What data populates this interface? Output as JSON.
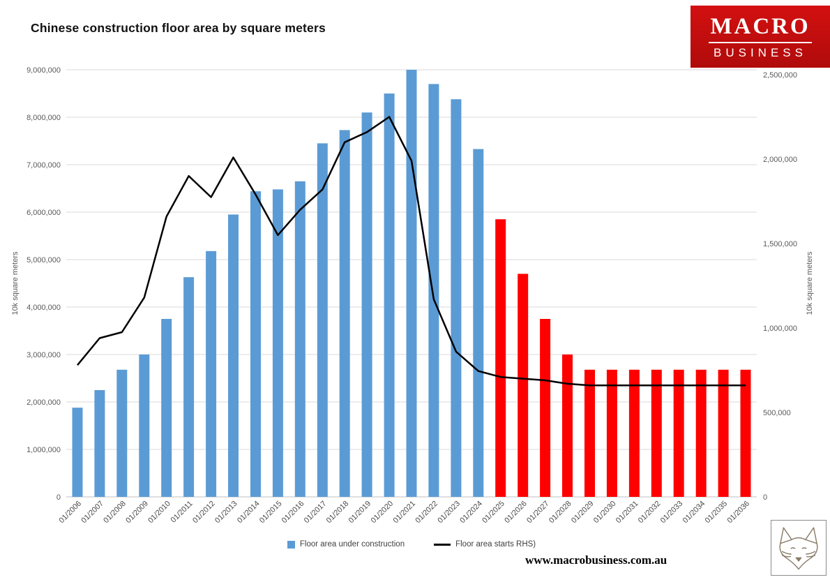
{
  "title": "Chinese construction floor area by square meters",
  "logo": {
    "line1": "MACRO",
    "line2": "BUSINESS"
  },
  "footer": {
    "url": "www.macrobusiness.com.au"
  },
  "chart_data": {
    "type": "bar",
    "title": "Chinese construction floor area by square meters",
    "categories": [
      "01/2006",
      "01/2007",
      "01/2008",
      "01/2009",
      "01/2010",
      "01/2011",
      "01/2012",
      "01/2013",
      "01/2014",
      "01/2015",
      "01/2016",
      "01/2017",
      "01/2018",
      "01/2019",
      "01/2020",
      "01/2021",
      "01/2022",
      "01/2023",
      "01/2024",
      "01/2025",
      "01/2026",
      "01/2027",
      "01/2028",
      "01/2029",
      "01/2030",
      "01/2031",
      "01/2032",
      "01/2033",
      "01/2034",
      "01/2035",
      "01/2036"
    ],
    "series": [
      {
        "name": "Floor area under construction",
        "type": "bar",
        "axis": "left",
        "color_historical": "#5B9BD5",
        "color_forecast": "#FF0000",
        "forecast_start_index": 19,
        "values": [
          1880000,
          2250000,
          2680000,
          3000000,
          3750000,
          4630000,
          5180000,
          5950000,
          6440000,
          6480000,
          6650000,
          7450000,
          7730000,
          8100000,
          8500000,
          9000000,
          8700000,
          8380000,
          7330000,
          5850000,
          4700000,
          3750000,
          3000000,
          2680000,
          2680000,
          2680000,
          2680000,
          2680000,
          2680000,
          2680000,
          2680000
        ]
      },
      {
        "name": "Floor area starts RHS)",
        "type": "line",
        "axis": "right",
        "color": "#000000",
        "values": [
          780000,
          940000,
          975000,
          1180000,
          1660000,
          1900000,
          1775000,
          2010000,
          1790000,
          1550000,
          1700000,
          1820000,
          2100000,
          2160000,
          2250000,
          1990000,
          1170000,
          860000,
          745000,
          710000,
          700000,
          690000,
          670000,
          660000,
          660000,
          660000,
          660000,
          660000,
          660000,
          660000,
          660000
        ]
      }
    ],
    "left_axis": {
      "label": "10k square meters",
      "min": 0,
      "max": 9000000,
      "step": 1000000,
      "ticks": [
        0,
        1000000,
        2000000,
        3000000,
        4000000,
        5000000,
        6000000,
        7000000,
        8000000,
        9000000
      ]
    },
    "right_axis": {
      "label": "10k square meters",
      "min": 0,
      "max": 2500000,
      "step": 500000,
      "ticks": [
        0,
        500000,
        1000000,
        1500000,
        2000000,
        2500000
      ]
    },
    "grid": "horizontal",
    "legend_position": "bottom",
    "legend": [
      {
        "label": "Floor area under construction",
        "swatch": "#5B9BD5",
        "type": "square"
      },
      {
        "label": "Floor area starts RHS)",
        "swatch": "#000000",
        "type": "line"
      }
    ]
  }
}
